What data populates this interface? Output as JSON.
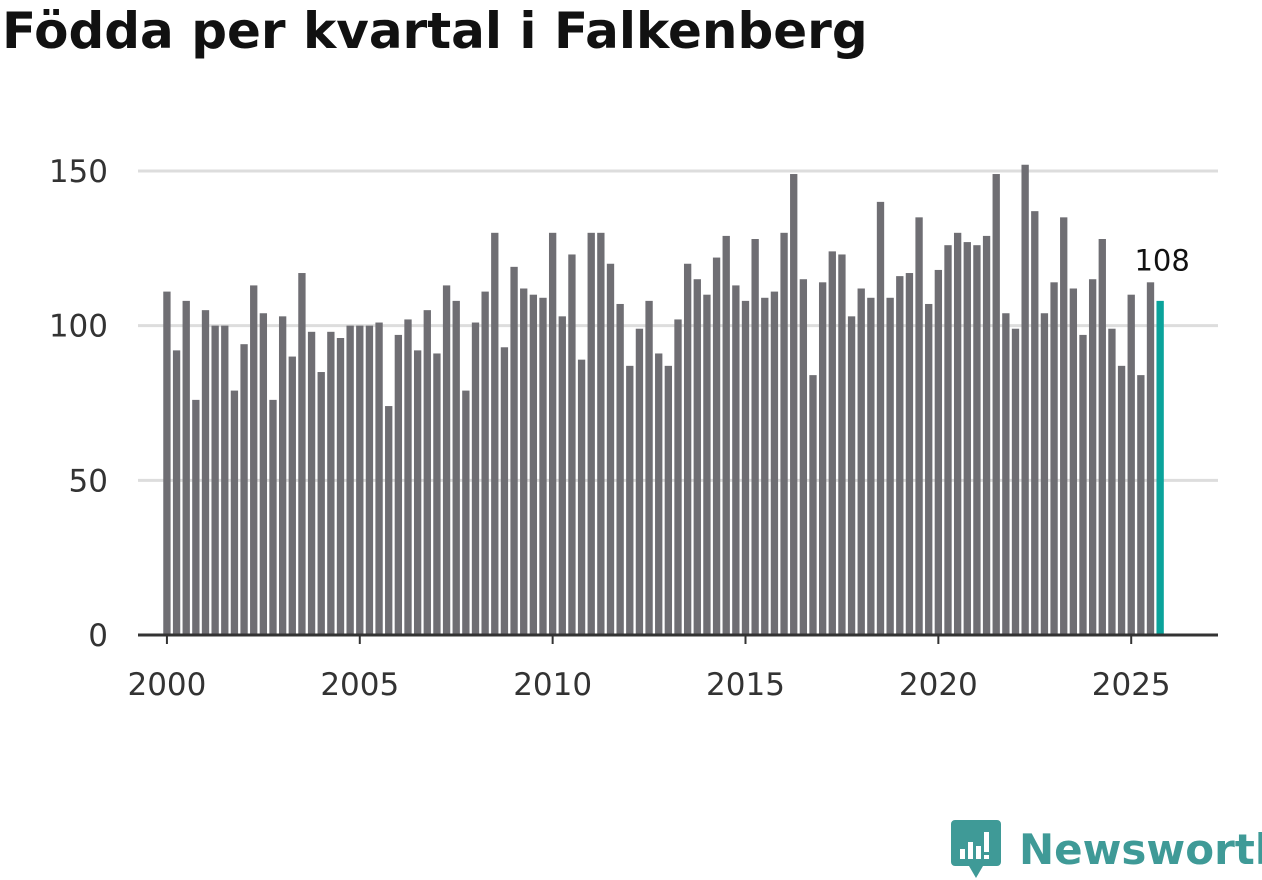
{
  "colors": {
    "bar": "#6f6e73",
    "highlight": "#0aa39b",
    "grid": "#dddddd",
    "axis": "#333333",
    "brand": "#3f9a97"
  },
  "chart_data": {
    "type": "bar",
    "title": "Födda per kvartal i Falkenberg",
    "xlabel": "",
    "ylabel": "",
    "x_start": 2000,
    "quarters_per_year": 4,
    "xlim": [
      1999.25,
      2027.25
    ],
    "ylim": [
      0,
      160
    ],
    "yticks": [
      0,
      50,
      100,
      150
    ],
    "xticks": [
      2000,
      2005,
      2010,
      2015,
      2020,
      2025
    ],
    "grid": true,
    "highlight_last": true,
    "last_value_label": "108",
    "values": [
      111,
      92,
      108,
      76,
      105,
      100,
      100,
      79,
      94,
      113,
      104,
      76,
      103,
      90,
      117,
      98,
      85,
      98,
      96,
      100,
      100,
      100,
      101,
      74,
      97,
      102,
      92,
      105,
      91,
      113,
      108,
      79,
      101,
      111,
      130,
      93,
      119,
      112,
      110,
      109,
      130,
      103,
      123,
      89,
      130,
      130,
      120,
      107,
      87,
      99,
      108,
      91,
      87,
      102,
      120,
      115,
      110,
      122,
      129,
      113,
      108,
      128,
      109,
      111,
      130,
      149,
      115,
      84,
      114,
      124,
      123,
      103,
      112,
      109,
      140,
      109,
      116,
      117,
      135,
      107,
      118,
      126,
      130,
      127,
      126,
      129,
      149,
      104,
      99,
      152,
      137,
      104,
      114,
      135,
      112,
      97,
      115,
      128,
      99,
      87,
      110,
      84,
      114,
      108
    ]
  },
  "brand": {
    "name": "Newsworthy",
    "icon": "newsworthy-logo-icon"
  }
}
